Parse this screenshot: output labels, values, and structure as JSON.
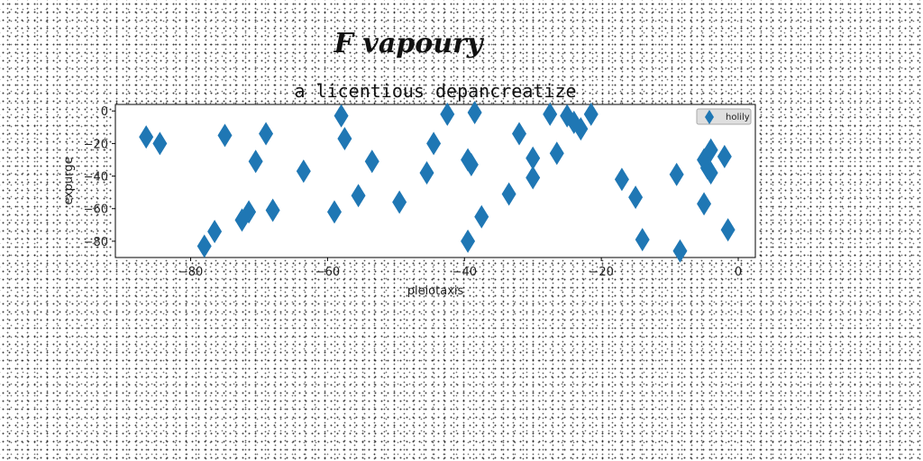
{
  "chart_data": {
    "type": "scatter",
    "suptitle": "F vapoury",
    "title": "a licentious depancreatize",
    "xlabel": "pleiotaxis",
    "ylabel": "expurge",
    "xlim": [
      -91,
      2.5
    ],
    "ylim": [
      -90,
      4
    ],
    "xticks": [
      -80,
      -60,
      -40,
      -20,
      0
    ],
    "yticks": [
      0,
      -20,
      -40,
      -60,
      -80
    ],
    "xtick_labels": [
      "−80",
      "−60",
      "−40",
      "−20",
      "0"
    ],
    "ytick_labels": [
      "0",
      "−20",
      "−40",
      "−60",
      "−80"
    ],
    "marker": "diamond",
    "color": "#1f77b4",
    "grid": false,
    "legend_position": "upper-right",
    "series": [
      {
        "name": "holily",
        "points": [
          [
            -86.5,
            -16
          ],
          [
            -84.5,
            -20
          ],
          [
            -78,
            -83
          ],
          [
            -76.5,
            -74
          ],
          [
            -75,
            -15
          ],
          [
            -72.5,
            -67
          ],
          [
            -71.5,
            -62
          ],
          [
            -70.5,
            -31
          ],
          [
            -69,
            -14
          ],
          [
            -68,
            -61
          ],
          [
            -63.5,
            -37
          ],
          [
            -59,
            -62
          ],
          [
            -58,
            -3
          ],
          [
            -57.5,
            -17
          ],
          [
            -55.5,
            -52
          ],
          [
            -53.5,
            -31
          ],
          [
            -49.5,
            -56
          ],
          [
            -45.5,
            -38
          ],
          [
            -44.5,
            -20
          ],
          [
            -42.5,
            -2
          ],
          [
            -39.5,
            -30
          ],
          [
            -39.5,
            -80
          ],
          [
            -39,
            -33
          ],
          [
            -38.5,
            -1
          ],
          [
            -37.5,
            -65
          ],
          [
            -33.5,
            -51
          ],
          [
            -32,
            -14
          ],
          [
            -30,
            -29
          ],
          [
            -30,
            -41
          ],
          [
            -27.5,
            -2
          ],
          [
            -26.5,
            -26
          ],
          [
            -25,
            -3
          ],
          [
            -24,
            -7
          ],
          [
            -23,
            -11
          ],
          [
            -21.5,
            -2
          ],
          [
            -17,
            -42
          ],
          [
            -15,
            -53
          ],
          [
            -14,
            -79
          ],
          [
            -9,
            -39
          ],
          [
            -8.5,
            -86
          ],
          [
            -5,
            -57
          ],
          [
            -5,
            -30
          ],
          [
            -4.5,
            -35
          ],
          [
            -4,
            -24
          ],
          [
            -4,
            -38
          ],
          [
            -2,
            -28
          ],
          [
            -1.5,
            -73
          ]
        ]
      }
    ]
  }
}
